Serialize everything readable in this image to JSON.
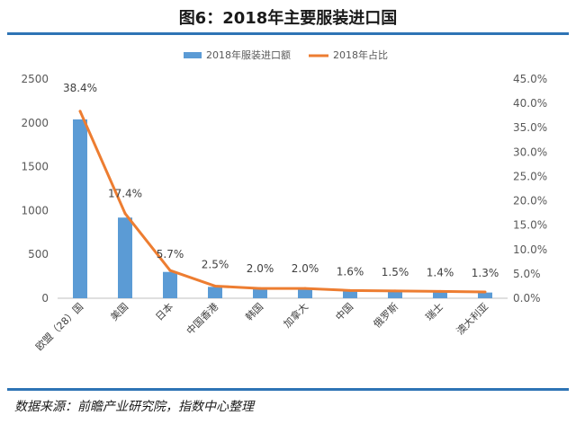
{
  "title": "图6：2018年主要服装进口国",
  "source": "数据来源：前瞻产业研究院，指数中心整理",
  "chart_data": {
    "type": "bar",
    "categories": [
      "欧盟（28）国",
      "美国",
      "日本",
      "中国香港",
      "韩国",
      "加拿大",
      "中国",
      "俄罗斯",
      "瑞士",
      "澳大利亚"
    ],
    "series": [
      {
        "name": "2018年服装进口额",
        "type": "bar",
        "axis": "left",
        "color": "#5b9bd5",
        "values": [
          2040,
          920,
          300,
          130,
          105,
          100,
          80,
          75,
          70,
          65
        ]
      },
      {
        "name": "2018年占比",
        "type": "line",
        "axis": "right",
        "color": "#ed7d31",
        "values": [
          38.4,
          17.4,
          5.7,
          2.5,
          2.0,
          2.0,
          1.6,
          1.5,
          1.4,
          1.3
        ],
        "labels": [
          "38.4%",
          "17.4%",
          "5.7%",
          "2.5%",
          "2.0%",
          "2.0%",
          "1.6%",
          "1.5%",
          "1.4%",
          "1.3%"
        ]
      }
    ],
    "y_left": {
      "min": 0,
      "max": 2500,
      "ticks": [
        "0",
        "500",
        "1000",
        "1500",
        "2000",
        "2500"
      ]
    },
    "y_right": {
      "min": 0,
      "max": 45,
      "ticks": [
        "0.0%",
        "5.0%",
        "10.0%",
        "15.0%",
        "20.0%",
        "25.0%",
        "30.0%",
        "35.0%",
        "40.0%",
        "45.0%"
      ]
    },
    "legend_position": "top",
    "grid": false
  }
}
